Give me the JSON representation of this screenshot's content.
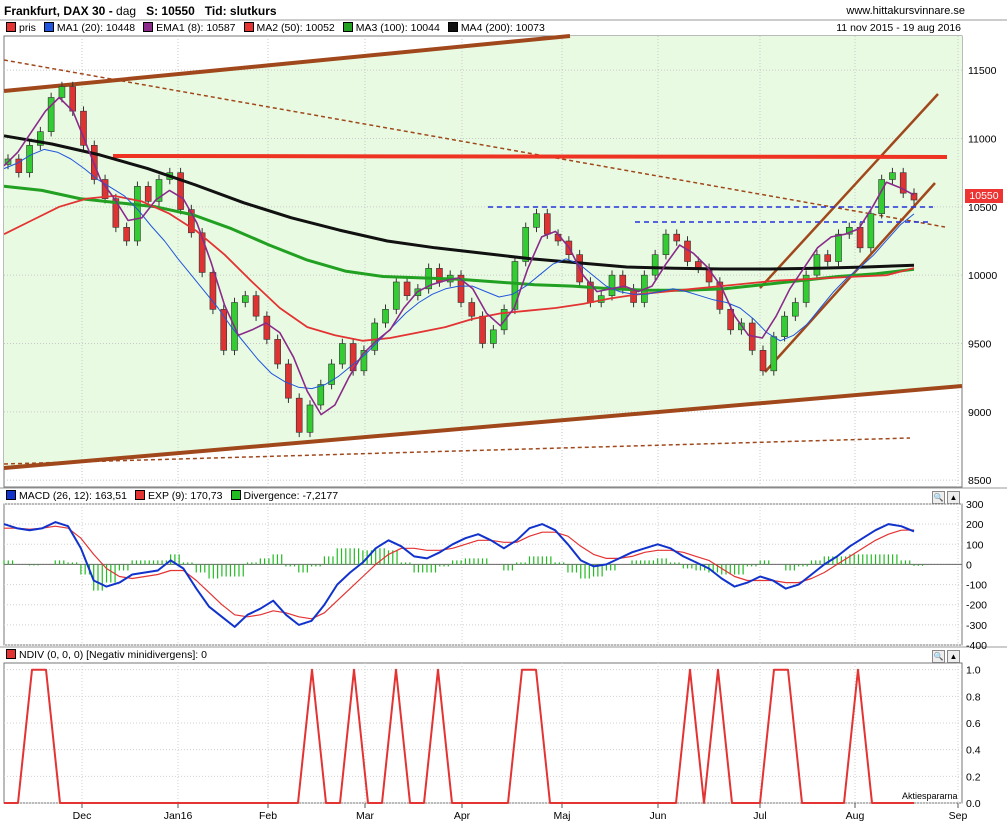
{
  "header": {
    "instrument": "Frankfurt, DAX 30",
    "period": "dag",
    "last_label": "S: 10550",
    "time_label": "Tid: slutkurs",
    "site": "www.hittakursvinnare.se",
    "range": "11 nov 2015 - 19 aug 2016",
    "year_marker": "2016"
  },
  "price_legend": [
    {
      "name": "pris",
      "color": "#e33333"
    },
    {
      "name": "MA1 (20): 10448",
      "color": "#2255dd"
    },
    {
      "name": "EMA1 (8): 10587",
      "color": "#8a2a8a"
    },
    {
      "name": "MA2 (50): 10052",
      "color": "#e33333"
    },
    {
      "name": "MA3 (100): 10044",
      "color": "#22a022"
    },
    {
      "name": "MA4 (200): 10073",
      "color": "#111111"
    }
  ],
  "last_price_tag": "10550",
  "macd_legend": [
    {
      "name": "MACD (26, 12): 163,51",
      "color": "#1133cc"
    },
    {
      "name": "EXP (9): 170,73",
      "color": "#e33333"
    },
    {
      "name": "Divergence: -7,2177",
      "color": "#22bb22"
    }
  ],
  "ndiv_legend": [
    {
      "name": "NDIV (0, 0, 0) [Negativ minidivergens]: 0",
      "color": "#e33333"
    }
  ],
  "watermark": "Aktiespararna",
  "colors": {
    "up": "#33cc33",
    "down": "#dd3333",
    "bg_channel": "#e8fbe2",
    "trend": "#a0481c",
    "resistance": "#ee3322",
    "support_dash": "#2233dd"
  },
  "chart_data": [
    {
      "type": "line",
      "title": "Frankfurt, DAX 30",
      "x_ticks": [
        "Dec",
        "Jan16",
        "Feb",
        "Mar",
        "Apr",
        "Maj",
        "Jun",
        "Jul",
        "Aug",
        "Sep"
      ],
      "y_ticks": [
        8500,
        9000,
        9500,
        10000,
        10500,
        11000,
        11500
      ],
      "ylim": [
        8450,
        11750
      ],
      "series": [
        {
          "name": "pris",
          "values": [
            10850,
            10750,
            10950,
            11050,
            11300,
            11380,
            11200,
            10950,
            10700,
            10560,
            10350,
            10250,
            10650,
            10540,
            10700,
            10750,
            10480,
            10310,
            10020,
            9750,
            9450,
            9800,
            9850,
            9700,
            9530,
            9350,
            9100,
            8850,
            9050,
            9200,
            9350,
            9500,
            9300,
            9450,
            9650,
            9750,
            9950,
            9850,
            9900,
            10050,
            9950,
            10000,
            9800,
            9700,
            9500,
            9600,
            9750,
            10100,
            10350,
            10450,
            10300,
            10250,
            10150,
            9950,
            9800,
            9850,
            10000,
            9900,
            9800,
            10000,
            10150,
            10300,
            10250,
            10100,
            10050,
            9950,
            9750,
            9600,
            9650,
            9450,
            9300,
            9550,
            9700,
            9800,
            10000,
            10150,
            10100,
            10300,
            10350,
            10200,
            10450,
            10700,
            10750,
            10600,
            10550
          ]
        },
        {
          "name": "MA1 (20): 10448",
          "values": [
            10780,
            10820,
            10880,
            10920,
            10900,
            10850,
            10780,
            10700,
            10640,
            10580,
            10480,
            10360,
            10250,
            10120,
            10000,
            9880,
            9760,
            9620,
            9500,
            9380,
            9280,
            9220,
            9180,
            9170,
            9200,
            9260,
            9340,
            9420,
            9520,
            9620,
            9720,
            9800,
            9860,
            9900,
            9920,
            9920,
            9880,
            9840,
            9860,
            9920,
            10000,
            10080,
            10120,
            10080,
            10000,
            9920,
            9880,
            9860,
            9860,
            9880,
            9900,
            9880,
            9850,
            9820,
            9800,
            9760,
            9680,
            9580,
            9520,
            9560,
            9640,
            9760,
            9880,
            9980,
            10060,
            10150,
            10260,
            10370,
            10448
          ]
        },
        {
          "name": "EMA1 (8): 10587",
          "values": [
            10800,
            10900,
            11050,
            11200,
            11300,
            11200,
            10950,
            10700,
            10560,
            10400,
            10420,
            10550,
            10620,
            10560,
            10380,
            10100,
            9780,
            9560,
            9600,
            9650,
            9580,
            9400,
            9150,
            8980,
            9050,
            9250,
            9420,
            9520,
            9600,
            9760,
            9880,
            9930,
            9960,
            9980,
            9900,
            9720,
            9630,
            9760,
            10050,
            10280,
            10320,
            10200,
            10000,
            9880,
            9900,
            9920,
            9880,
            9920,
            10080,
            10220,
            10160,
            10060,
            9920,
            9700,
            9560,
            9540,
            9700,
            9900,
            10050,
            10200,
            10280,
            10300,
            10340,
            10500,
            10680,
            10640,
            10587
          ]
        },
        {
          "name": "MA2 (50): 10052",
          "values": [
            10300,
            10400,
            10500,
            10560,
            10580,
            10540,
            10450,
            10320,
            10150,
            9950,
            9760,
            9620,
            9560,
            9520,
            9540,
            9580,
            9620,
            9680,
            9720,
            9740,
            9760,
            9790,
            9830,
            9860,
            9880,
            9900,
            9920,
            9940,
            9960,
            9970,
            9980,
            9990,
            10000,
            10052
          ]
        },
        {
          "name": "MA3 (100): 10044",
          "values": [
            10650,
            10620,
            10560,
            10530,
            10500,
            10440,
            10340,
            10220,
            10110,
            10030,
            9990,
            9980,
            9970,
            9950,
            9930,
            9920,
            9900,
            9890,
            9890,
            9900,
            9930,
            9960,
            9990,
            10010,
            10044
          ]
        },
        {
          "name": "MA4 (200): 10073",
          "values": [
            11020,
            10960,
            10880,
            10780,
            10660,
            10530,
            10420,
            10330,
            10250,
            10200,
            10160,
            10120,
            10090,
            10060,
            10050,
            10045,
            10045,
            10050,
            10060,
            10073
          ]
        }
      ]
    },
    {
      "type": "line",
      "title": "MACD (26, 12)",
      "y_ticks": [
        -400,
        -300,
        -200,
        -100,
        0,
        100,
        200,
        300
      ],
      "ylim": [
        -400,
        300
      ],
      "series": [
        {
          "name": "MACD (26, 12): 163,51",
          "values": [
            200,
            180,
            170,
            180,
            210,
            190,
            80,
            -80,
            -110,
            -90,
            -50,
            -40,
            -30,
            20,
            -20,
            -120,
            -210,
            -260,
            -310,
            -250,
            -220,
            -180,
            -250,
            -300,
            -280,
            -200,
            -100,
            -40,
            10,
            80,
            120,
            90,
            40,
            30,
            60,
            100,
            130,
            150,
            120,
            80,
            120,
            180,
            200,
            170,
            100,
            20,
            -10,
            0,
            30,
            60,
            80,
            100,
            80,
            40,
            10,
            -20,
            -70,
            -110,
            -90,
            -60,
            -80,
            -120,
            -100,
            -50,
            0,
            40,
            90,
            130,
            170,
            200,
            190,
            164
          ]
        },
        {
          "name": "EXP (9): 170,73",
          "values": [
            180,
            180,
            175,
            180,
            190,
            180,
            130,
            50,
            -20,
            -60,
            -70,
            -60,
            -50,
            -30,
            -30,
            -80,
            -140,
            -200,
            -250,
            -260,
            -250,
            -230,
            -240,
            -260,
            -270,
            -240,
            -180,
            -120,
            -60,
            0,
            50,
            80,
            80,
            70,
            70,
            80,
            100,
            120,
            120,
            110,
            110,
            140,
            160,
            160,
            140,
            90,
            50,
            30,
            30,
            40,
            60,
            70,
            70,
            60,
            40,
            20,
            -20,
            -60,
            -80,
            -80,
            -80,
            -90,
            -90,
            -70,
            -40,
            0,
            40,
            80,
            120,
            150,
            170,
            171
          ]
        },
        {
          "name": "Divergence: -7,2177",
          "values": [
            20,
            0,
            -5,
            0,
            20,
            10,
            -50,
            -130,
            -90,
            -30,
            20,
            20,
            20,
            50,
            10,
            -40,
            -70,
            -60,
            -60,
            10,
            30,
            50,
            -10,
            -40,
            -10,
            40,
            80,
            80,
            70,
            80,
            70,
            10,
            -40,
            -40,
            -10,
            20,
            30,
            30,
            0,
            -30,
            10,
            40,
            40,
            10,
            -40,
            -70,
            -60,
            -30,
            0,
            20,
            20,
            30,
            10,
            -20,
            -30,
            -40,
            -50,
            -50,
            -10,
            20,
            0,
            -30,
            -10,
            20,
            40,
            40,
            50,
            50,
            50,
            50,
            20,
            -7
          ]
        }
      ]
    },
    {
      "type": "line",
      "title": "NDIV (0, 0, 0) [Negativ minidivergens]",
      "y_ticks": [
        0.0,
        0.2,
        0.4,
        0.6,
        0.8,
        1.0
      ],
      "ylim": [
        0,
        1.05
      ],
      "series": [
        {
          "name": "NDIV (0, 0, 0) [Negativ minidivergens]: 0",
          "values": [
            0,
            0,
            1,
            1,
            0,
            0,
            0,
            0,
            0,
            0,
            0,
            0,
            0,
            0,
            0,
            0,
            0,
            0,
            0,
            0,
            0,
            0,
            1,
            0,
            0,
            1,
            0,
            0,
            1,
            0,
            0,
            1,
            0,
            0,
            0,
            0,
            0,
            1,
            1,
            0,
            0,
            0,
            0,
            0,
            0,
            0,
            0,
            0,
            0,
            1,
            0,
            1,
            0,
            0,
            0,
            1,
            1,
            0,
            0,
            0,
            0,
            1,
            0,
            0,
            0,
            0
          ]
        }
      ]
    }
  ]
}
